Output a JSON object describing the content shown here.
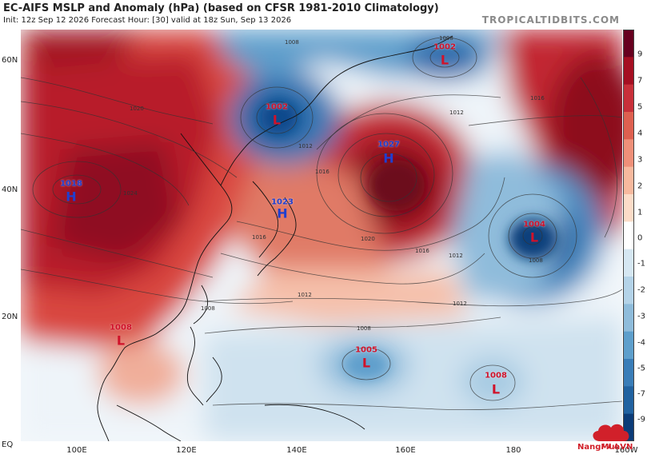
{
  "header": {
    "title": "EC-AIFS MSLP and Anomaly (hPa) (based on CFSR 1981-2010 Climatology)",
    "subtitle": "Init: 12z Sep 12 2026   Forecast Hour: [30]   valid at 18z Sun, Sep 13 2026",
    "brand": "TROPICALTIDBITS.COM"
  },
  "axes": {
    "lat_labels": [
      "60N",
      "40N",
      "20N",
      "EQ"
    ],
    "lon_labels": [
      "100E",
      "120E",
      "140E",
      "160E",
      "180",
      "160W"
    ]
  },
  "colorbar": {
    "labels": [
      "9",
      "7",
      "5",
      "4",
      "3",
      "2",
      "1",
      "0",
      "-1",
      "-2",
      "-3",
      "-4",
      "-5",
      "-7",
      "-9"
    ],
    "colors": [
      "#67001f",
      "#a50f22",
      "#c8303a",
      "#de6050",
      "#ef9079",
      "#f7b99e",
      "#fcdcc8",
      "#ffffff",
      "#d6e7f2",
      "#b4d3e8",
      "#8fbcdb",
      "#5e9fcc",
      "#3a7db8",
      "#2162a0",
      "#0c3c78"
    ]
  },
  "pressure_centers": [
    {
      "type": "L",
      "value": "1002",
      "color": "#d0122a"
    },
    {
      "type": "L",
      "value": "1002",
      "color": "#d0122a"
    },
    {
      "type": "H",
      "value": "1027",
      "color": "#1f3fd0"
    },
    {
      "type": "H",
      "value": "1018",
      "color": "#1f3fd0"
    },
    {
      "type": "H",
      "value": "1023",
      "color": "#1f3fd0"
    },
    {
      "type": "L",
      "value": "1004",
      "color": "#d0122a"
    },
    {
      "type": "L",
      "value": "1005",
      "color": "#d0122a"
    },
    {
      "type": "L",
      "value": "1008",
      "color": "#d0122a"
    },
    {
      "type": "L",
      "value": "1008",
      "color": "#d0122a"
    }
  ],
  "isobar_labels": [
    "1008",
    "1012",
    "1016",
    "1020",
    "1024",
    "1012",
    "1016",
    "1008",
    "1012",
    "1020",
    "1016",
    "1008",
    "1012",
    "1016",
    "1008",
    "1008",
    "1012"
  ],
  "watermark": "NangMuaVN"
}
